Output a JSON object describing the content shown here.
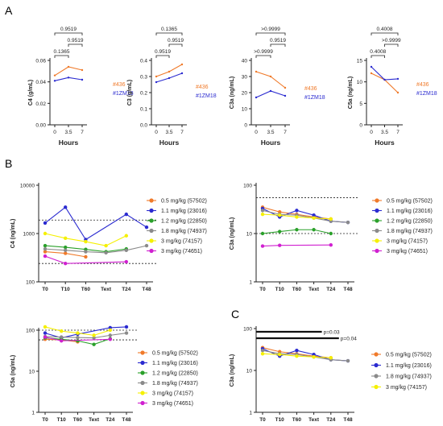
{
  "panel_letters": [
    "A",
    "B",
    "C"
  ],
  "chart_data": [
    {
      "panel": "A",
      "type": "line",
      "ylabel": "C4 (g/mL)",
      "xlabel": "Hours",
      "x_ticks": [
        "0",
        "3.5",
        "7"
      ],
      "y_ticks": [
        "0.00",
        "0.02",
        "0.04",
        "0.06"
      ],
      "ylim": [
        0,
        0.06
      ],
      "series": [
        {
          "name": "#436",
          "color": "#f07a2a",
          "values": [
            0.046,
            0.054,
            0.051
          ]
        },
        {
          "name": "#1ZM18",
          "color": "#2b2bd0",
          "values": [
            0.041,
            0.044,
            0.042
          ]
        }
      ],
      "brackets": [
        {
          "label": "0.9519",
          "from": 0,
          "to": 2,
          "level": 3
        },
        {
          "label": "0.9519",
          "from": 1,
          "to": 2,
          "level": 2
        },
        {
          "label": "0.1365",
          "from": 0,
          "to": 1,
          "level": 1
        }
      ]
    },
    {
      "panel": "A",
      "type": "line",
      "ylabel": "C3 (g/mL)",
      "xlabel": "Hours",
      "x_ticks": [
        "0",
        "3.5",
        "7"
      ],
      "y_ticks": [
        "0.0",
        "0.1",
        "0.2",
        "0.3",
        "0.4"
      ],
      "ylim": [
        0,
        0.4
      ],
      "series": [
        {
          "name": "#436",
          "color": "#f07a2a",
          "values": [
            0.3,
            0.33,
            0.375
          ]
        },
        {
          "name": "#1ZM18",
          "color": "#2b2bd0",
          "values": [
            0.265,
            0.29,
            0.32
          ]
        }
      ],
      "brackets": [
        {
          "label": "0.1365",
          "from": 0,
          "to": 2,
          "level": 3
        },
        {
          "label": "0.9519",
          "from": 1,
          "to": 2,
          "level": 2
        },
        {
          "label": "0.9519",
          "from": 0,
          "to": 1,
          "level": 1
        }
      ]
    },
    {
      "panel": "A",
      "type": "line",
      "ylabel": "C3a (ng/mL)",
      "xlabel": "Hours",
      "x_ticks": [
        "0",
        "3.5",
        "7"
      ],
      "y_ticks": [
        "0",
        "10",
        "20",
        "30",
        "40"
      ],
      "ylim": [
        0,
        40
      ],
      "series": [
        {
          "name": "#436",
          "color": "#f07a2a",
          "values": [
            33,
            30,
            23
          ]
        },
        {
          "name": "#1ZM18",
          "color": "#2b2bd0",
          "values": [
            17,
            21,
            18
          ]
        }
      ],
      "brackets": [
        {
          "label": ">0.9999",
          "from": 0,
          "to": 2,
          "level": 3
        },
        {
          "label": "0.9519",
          "from": 1,
          "to": 2,
          "level": 2
        },
        {
          "label": ">0.9999",
          "from": 0,
          "to": 1,
          "level": 1
        }
      ]
    },
    {
      "panel": "A",
      "type": "line",
      "ylabel": "C5a (ng/mL)",
      "xlabel": "Hours",
      "x_ticks": [
        "0",
        "3.5",
        "7"
      ],
      "y_ticks": [
        "0",
        "5",
        "10",
        "15"
      ],
      "ylim": [
        0,
        15
      ],
      "series": [
        {
          "name": "#436",
          "color": "#f07a2a",
          "values": [
            12.0,
            10.5,
            7.5
          ]
        },
        {
          "name": "#1ZM18",
          "color": "#2b2bd0",
          "values": [
            13.5,
            10.5,
            10.7
          ]
        }
      ],
      "brackets": [
        {
          "label": "0.4008",
          "from": 0,
          "to": 2,
          "level": 3
        },
        {
          "label": ">0.9999",
          "from": 1,
          "to": 2,
          "level": 2
        },
        {
          "label": "0.4008",
          "from": 0,
          "to": 1,
          "level": 1
        }
      ]
    },
    {
      "panel": "B",
      "type": "line",
      "ylabel": "C4 (ng/mL)",
      "xlabel": "",
      "y_scale": "log",
      "x_ticks": [
        "T0",
        "T10",
        "T60",
        "Text",
        "T24",
        "T48"
      ],
      "y_ticks": [
        "100",
        "1000",
        "10000"
      ],
      "ylim": [
        100,
        10000
      ],
      "ref_lines": [
        1900,
        240
      ],
      "series": [
        {
          "name": "0.5 mg/kg (57502)",
          "color": "#f07a2a",
          "values": [
            420,
            390,
            330,
            null,
            null,
            null
          ]
        },
        {
          "name": "1.1 mg/kg (23016)",
          "color": "#2b2bd0",
          "values": [
            1650,
            3500,
            750,
            null,
            2500,
            1350
          ]
        },
        {
          "name": "1.2 mg/kg (22850)",
          "color": "#2aa02a",
          "values": [
            560,
            520,
            470,
            420,
            480,
            null
          ]
        },
        {
          "name": "1.8 mg/kg (74937)",
          "color": "#8a8a8a",
          "values": [
            480,
            450,
            420,
            400,
            450,
            560
          ]
        },
        {
          "name": "3 mg/kg (74157)",
          "color": "#f5f000",
          "values": [
            1000,
            800,
            680,
            560,
            900,
            null
          ]
        },
        {
          "name": "3 mg/kg (74651)",
          "color": "#d020d0",
          "values": [
            340,
            240,
            null,
            null,
            260,
            null
          ]
        }
      ]
    },
    {
      "panel": "B",
      "type": "line",
      "ylabel": "C3a (ng/mL)",
      "xlabel": "",
      "y_scale": "log",
      "x_ticks": [
        "T0",
        "T10",
        "T60",
        "Text",
        "T24",
        "T48"
      ],
      "y_ticks": [
        "1",
        "10",
        "100"
      ],
      "ylim": [
        1,
        100
      ],
      "ref_lines": [
        55,
        10
      ],
      "series": [
        {
          "name": "0.5 mg/kg (57502)",
          "color": "#f07a2a",
          "values": [
            35,
            28,
            25,
            22,
            20,
            null
          ]
        },
        {
          "name": "1.1 mg/kg (23016)",
          "color": "#2b2bd0",
          "values": [
            33,
            22,
            30,
            24,
            18,
            17
          ]
        },
        {
          "name": "1.2 mg/kg (22850)",
          "color": "#2aa02a",
          "values": [
            10,
            11,
            12,
            12,
            10,
            null
          ]
        },
        {
          "name": "1.8 mg/kg (74937)",
          "color": "#8a8a8a",
          "values": [
            30,
            25,
            24,
            21,
            18,
            17
          ]
        },
        {
          "name": "3 mg/kg (74157)",
          "color": "#f5f000",
          "values": [
            25,
            24,
            22,
            21,
            20,
            null
          ]
        },
        {
          "name": "3 mg/kg (74651)",
          "color": "#d020d0",
          "values": [
            5.5,
            5.7,
            null,
            null,
            5.8,
            null
          ]
        }
      ]
    },
    {
      "panel": "B",
      "type": "line",
      "ylabel": "C5a (ng/mL)",
      "xlabel": "",
      "y_scale": "log",
      "x_ticks": [
        "T0",
        "T10",
        "T60",
        "Text",
        "T24",
        "T48"
      ],
      "y_ticks": [
        "1",
        "10",
        "100"
      ],
      "ylim": [
        1,
        100
      ],
      "ref_lines": [
        100,
        58
      ],
      "series": [
        {
          "name": "0.5 mg/kg (57502)",
          "color": "#f07a2a",
          "values": [
            60,
            58,
            52,
            null,
            null,
            null
          ]
        },
        {
          "name": "1.1 mg/kg (23016)",
          "color": "#2b2bd0",
          "values": [
            85,
            65,
            80,
            null,
            115,
            120
          ]
        },
        {
          "name": "1.2 mg/kg (22850)",
          "color": "#2aa02a",
          "values": [
            65,
            60,
            55,
            45,
            62,
            null
          ]
        },
        {
          "name": "1.8 mg/kg (74937)",
          "color": "#8a8a8a",
          "values": [
            70,
            68,
            66,
            65,
            75,
            85
          ]
        },
        {
          "name": "3 mg/kg (74157)",
          "color": "#f5f000",
          "values": [
            120,
            95,
            85,
            75,
            100,
            null
          ]
        },
        {
          "name": "3 mg/kg (74651)",
          "color": "#d020d0",
          "values": [
            68,
            55,
            null,
            null,
            60,
            null
          ]
        }
      ]
    },
    {
      "panel": "C",
      "type": "line",
      "ylabel": "C3a (ng/mL)",
      "xlabel": "",
      "y_scale": "log",
      "x_ticks": [
        "T0",
        "T10",
        "T60",
        "Text",
        "T24",
        "T48"
      ],
      "y_ticks": [
        "1",
        "10",
        "100"
      ],
      "ylim": [
        1,
        100
      ],
      "series": [
        {
          "name": "0.5 mg/kg (57502)",
          "color": "#f07a2a",
          "values": [
            35,
            28,
            25,
            22,
            20,
            null
          ]
        },
        {
          "name": "1.1 mg/kg (23016)",
          "color": "#2b2bd0",
          "values": [
            33,
            22,
            30,
            24,
            18,
            17
          ]
        },
        {
          "name": "1.8 mg/kg (74937)",
          "color": "#8a8a8a",
          "values": [
            30,
            25,
            24,
            21,
            18,
            17
          ]
        },
        {
          "name": "3 mg/kg (74157)",
          "color": "#f5f000",
          "values": [
            25,
            24,
            22,
            21,
            20,
            null
          ]
        }
      ],
      "sig_lines": [
        {
          "label": "p=0.03",
          "from": 0,
          "to": 3
        },
        {
          "label": "p=0.04",
          "from": 0,
          "to": 4
        }
      ]
    }
  ]
}
